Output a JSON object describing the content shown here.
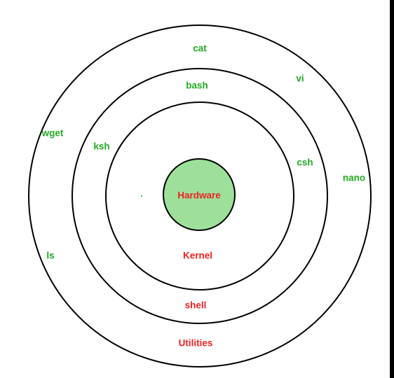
{
  "colors": {
    "background": "#ffffff",
    "border": "#000000",
    "ring_stroke": "#000000",
    "hardware_fill": "#9de09a",
    "green_text": "#22aa22",
    "red_text": "#ee2222"
  },
  "layers": {
    "core": "Hardware",
    "kernel": "Kernel",
    "shell": "shell",
    "utilities": "Utilities"
  },
  "shells": {
    "bash": "bash",
    "ksh": "ksh",
    "csh": "csh"
  },
  "utilities": {
    "cat": "cat",
    "vi": "vi",
    "wget": "wget",
    "nano": "nano",
    "ls": "ls"
  }
}
